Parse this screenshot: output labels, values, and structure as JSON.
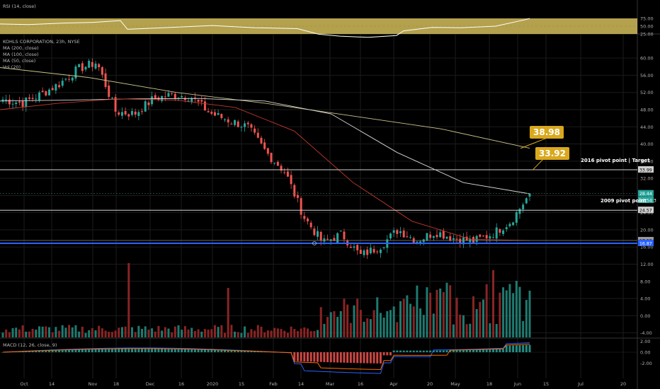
{
  "colors": {
    "background": "#000000",
    "grid": "#1b1b1b",
    "up": "#26a69a",
    "down": "#ef5350",
    "vol_up": "#1e7a70",
    "vol_down": "#8a2424",
    "ma200": "#c8c48a",
    "ma100": "#d8d8d8",
    "ma50": "#c0392b",
    "rsi_band": "#d4bd5a",
    "macd_line": "#2962ff",
    "signal_line": "#ff6d00",
    "hist_up": "#26a69a",
    "hist_down": "#ef5350",
    "pivot_2016": "#d0d0d0",
    "pivot_2009": "#d0d0d0",
    "support_blue": "#2962ff",
    "callout": "#d9a81d"
  },
  "labels": {
    "rsi_title": "RSI (14, close)",
    "symbol": "KOHLS CORPORATION, 23h, NYSE",
    "ma200": "MA (200, close)",
    "ma100": "MA (100, close)",
    "ma50": "MA (50, close)",
    "vol": "Vol (20)",
    "macd": "MACD (12, 26, close, 9)",
    "pivot_2016": "2016 pivot point | Target",
    "pivot_2009": "2009 pivot point",
    "callout_a": "38.98",
    "callout_b": "33.92"
  },
  "price_tags": {
    "pivot_2016": "33.99",
    "last": "28.44",
    "countdown": "12:54:3",
    "pivot_2009": "24.57",
    "support_a": "17.52",
    "support_b": "16.87"
  },
  "chart_data": {
    "type": "candlestick",
    "x_ticks": [
      "Oct",
      "14",
      "Nov",
      "18",
      "Dec",
      "16",
      "2020",
      "15",
      "Feb",
      "14",
      "Mar",
      "16",
      "Apr",
      "20",
      "May",
      "18",
      "Jun",
      "15",
      "Jul",
      "20"
    ],
    "y_ticks": [
      60.0,
      56.0,
      52.0,
      48.0,
      44.0,
      40.0,
      36.0,
      32.0,
      28.0,
      24.0,
      20.0,
      16.0,
      12.0,
      8.0,
      4.0,
      0.0,
      -4.0
    ],
    "y_tick_labels": [
      "60.00",
      "56.00",
      "52.00",
      "48.00",
      "44.00",
      "40.00",
      "36.00",
      "32.00",
      "28.00",
      "24.00",
      "20.00",
      "16.00",
      "12.00",
      "8.00",
      "4.00",
      "0.00",
      "-4.00"
    ],
    "rsi_ticks": [
      75.0,
      50.0,
      25.0
    ],
    "rsi_tick_labels": [
      "75.00",
      "50.00",
      "25.00"
    ],
    "macd_ticks": [
      2.0,
      0.0,
      -2.0
    ],
    "macd_tick_labels": [
      "2.00",
      "0.00",
      "-2.00"
    ],
    "anchor_closes": [
      50.4,
      49.5,
      51.5,
      54.0,
      57.5,
      59.0,
      47.5,
      47.0,
      50.5,
      51.5,
      51.0,
      47.2,
      45.5,
      44.0,
      38.0,
      33.5,
      23.0,
      17.0,
      19.0,
      14.0,
      16.0,
      20.0,
      17.5,
      19.5,
      18.0,
      17.3,
      19.0,
      22.0,
      28.4
    ],
    "ma200_anchors": [
      57.8,
      55.5,
      52.0,
      49.5,
      46.5,
      43.5,
      39.0
    ],
    "ma100_anchors": [
      50.0,
      50.2,
      50.5,
      50.6,
      50.0,
      47.0,
      38.0,
      31.0,
      28.4
    ],
    "ma50_anchors": [
      48.0,
      49.5,
      50.5,
      50.2,
      48.5,
      43.0,
      31.0,
      22.0,
      17.8,
      17.5
    ],
    "horizontal_levels": {
      "pivot_2016": 33.99,
      "pivot_2009": 24.57,
      "support_a": 17.52,
      "support_b": 16.87
    },
    "callouts": [
      {
        "label": "38.98",
        "value": 38.98
      },
      {
        "label": "33.92",
        "value": 33.92
      }
    ],
    "rsi_last": 75.0
  }
}
